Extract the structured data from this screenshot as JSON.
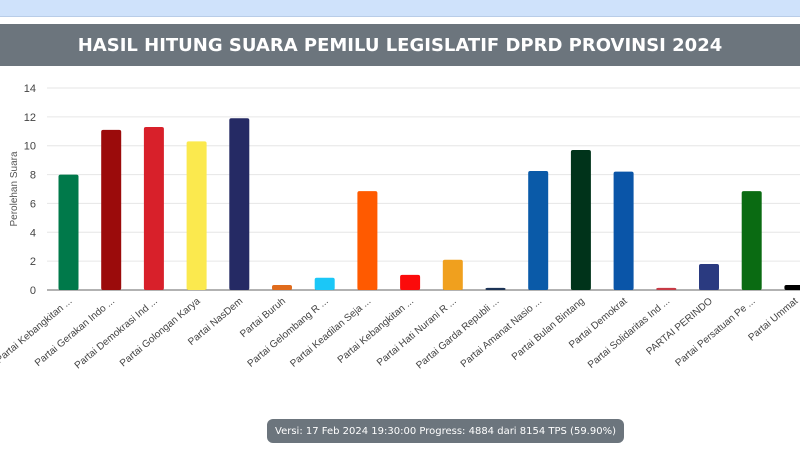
{
  "header": {
    "title": "HASIL HITUNG SUARA PEMILU LEGISLATIF DPRD PROVINSI 2024"
  },
  "status": {
    "text": "Versi: 17 Feb 2024 19:30:00 Progress: 4884 dari 8154 TPS (59.90%)"
  },
  "chart_data": {
    "type": "bar",
    "title": "",
    "xlabel": "",
    "ylabel": "Perolehan Suara",
    "ylim": [
      0,
      14
    ],
    "yticks": [
      0,
      2,
      4,
      6,
      8,
      10,
      12,
      14
    ],
    "grid": true,
    "categories": [
      "Partai Kebangkitan ...",
      "Partai Gerakan Indo ...",
      "Partai Demokrasi Ind ...",
      "Partai Golongan Karya",
      "Partai NasDem",
      "Partai Buruh",
      "Partai Gelombang R ...",
      "Partai Keadilan Seja ...",
      "Partai Kebangkitan ...",
      "Partai Hati Nurani R ...",
      "Partai Garda Republi ...",
      "Partai Amanat Nasio ...",
      "Partai Bulan Bintang",
      "Partai Demokrat",
      "Partai Solidaritas Ind ...",
      "PARTAI PERINDO",
      "Partai Persatuan Pe ...",
      "Partai Ummat"
    ],
    "values": [
      8.0,
      11.1,
      11.3,
      10.3,
      11.9,
      0.35,
      0.85,
      6.85,
      1.05,
      2.1,
      0.15,
      8.25,
      9.7,
      8.2,
      0.15,
      1.8,
      6.85,
      0.35
    ],
    "colors": [
      "#00794a",
      "#9b0b0b",
      "#d8202a",
      "#fbe94e",
      "#252a64",
      "#e06b1c",
      "#1bc7f7",
      "#ff5a00",
      "#fb0b0b",
      "#f0a01e",
      "#1c3356",
      "#0a5aa8",
      "#00331a",
      "#0a55a8",
      "#c73a45",
      "#2a3a80",
      "#0a6b12",
      "#000000"
    ]
  }
}
